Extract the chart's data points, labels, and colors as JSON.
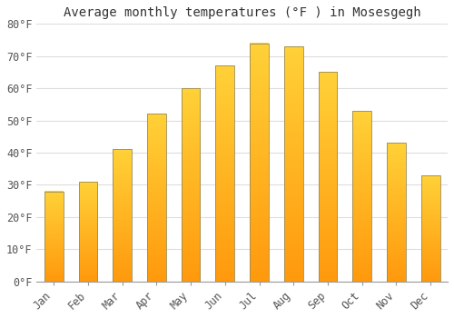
{
  "title": "Average monthly temperatures (°F ) in Mosesgegh",
  "months": [
    "Jan",
    "Feb",
    "Mar",
    "Apr",
    "May",
    "Jun",
    "Jul",
    "Aug",
    "Sep",
    "Oct",
    "Nov",
    "Dec"
  ],
  "values": [
    28,
    31,
    41,
    52,
    60,
    67,
    74,
    73,
    65,
    53,
    43,
    33
  ],
  "bar_color_top": "#FFB300",
  "bar_color_bottom": "#FF9500",
  "bar_edge_color": "#888855",
  "background_color": "#FFFFFF",
  "plot_bg_color": "#FFFFFF",
  "grid_color": "#DDDDDD",
  "ylim": [
    0,
    80
  ],
  "yticks": [
    0,
    10,
    20,
    30,
    40,
    50,
    60,
    70,
    80
  ],
  "title_fontsize": 10,
  "tick_fontsize": 8.5,
  "font_family": "monospace",
  "bar_width": 0.55
}
